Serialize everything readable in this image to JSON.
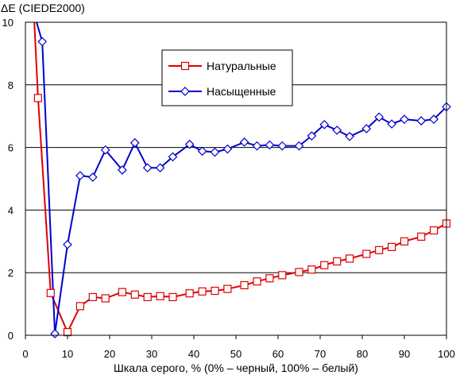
{
  "chart_data": {
    "type": "line",
    "ylabel": "ΔE (CIEDE2000)",
    "xlabel": "Шкала серого, % (0% – черный, 100% – белый)",
    "xlim": [
      0,
      100
    ],
    "ylim": [
      0,
      10
    ],
    "xticks": [
      0,
      10,
      20,
      30,
      40,
      50,
      60,
      70,
      80,
      90,
      100
    ],
    "yticks": [
      0,
      2,
      4,
      6,
      8,
      10
    ],
    "grid": "horizontal",
    "legend_position": "top-center",
    "series": [
      {
        "name": "Натуральные",
        "color": "#e00000",
        "marker": "square",
        "x": [
          2,
          3,
          6,
          10,
          13,
          16,
          19,
          23,
          26,
          29,
          32,
          35,
          39,
          42,
          45,
          48,
          52,
          55,
          58,
          61,
          65,
          68,
          71,
          74,
          77,
          81,
          84,
          87,
          90,
          94,
          97,
          100
        ],
        "y": [
          10.3,
          7.58,
          1.35,
          0.1,
          0.93,
          1.22,
          1.18,
          1.38,
          1.3,
          1.22,
          1.25,
          1.22,
          1.34,
          1.4,
          1.42,
          1.48,
          1.6,
          1.72,
          1.82,
          1.92,
          2.02,
          2.1,
          2.24,
          2.36,
          2.45,
          2.6,
          2.72,
          2.82,
          3.0,
          3.15,
          3.35,
          3.57
        ]
      },
      {
        "name": "Насыщенные",
        "color": "#0000d0",
        "marker": "diamond",
        "x": [
          2,
          4,
          7,
          10,
          13,
          16,
          19,
          23,
          26,
          29,
          32,
          35,
          39,
          42,
          45,
          48,
          52,
          55,
          58,
          61,
          65,
          68,
          71,
          74,
          77,
          81,
          84,
          87,
          90,
          94,
          97,
          100
        ],
        "y": [
          10.3,
          9.38,
          0.05,
          2.9,
          5.1,
          5.05,
          5.92,
          5.28,
          6.15,
          5.35,
          5.35,
          5.7,
          6.1,
          5.88,
          5.85,
          5.95,
          6.17,
          6.05,
          6.08,
          6.05,
          6.05,
          6.37,
          6.73,
          6.55,
          6.35,
          6.6,
          6.97,
          6.75,
          6.9,
          6.85,
          6.9,
          7.3
        ]
      }
    ]
  }
}
